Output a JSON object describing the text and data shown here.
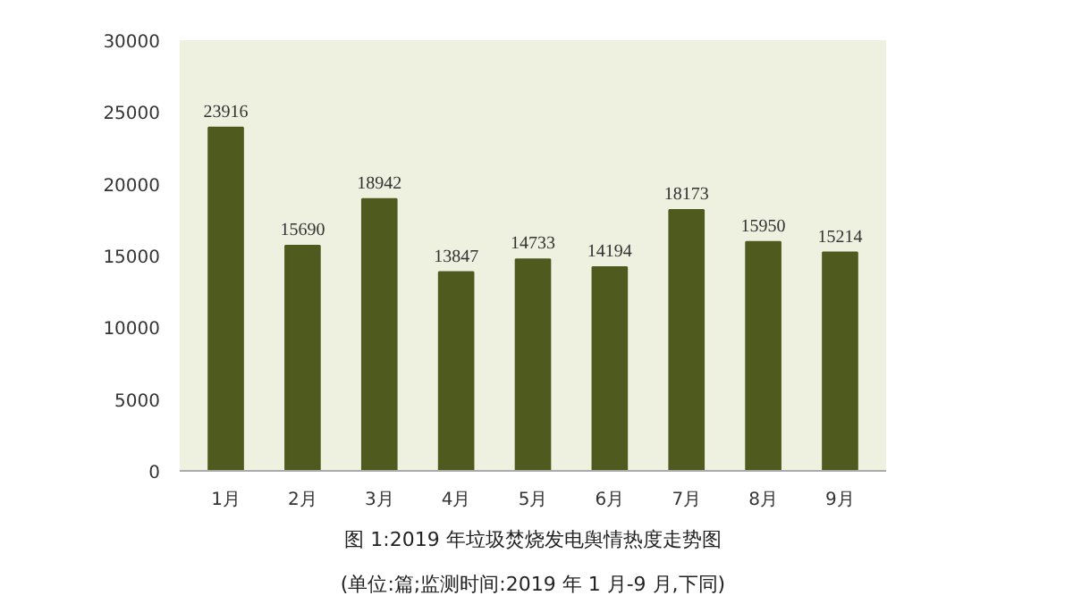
{
  "chart_data": {
    "type": "bar",
    "title": "图 1:2019 年垃圾焚烧发电舆情热度走势图",
    "subtitle": "(单位:篇;监测时间:2019 年 1 月-9 月,下同)",
    "categories": [
      "1月",
      "2月",
      "3月",
      "4月",
      "5月",
      "6月",
      "7月",
      "8月",
      "9月"
    ],
    "values": [
      23916,
      15690,
      18942,
      13847,
      14733,
      14194,
      18173,
      15950,
      15214
    ],
    "color": "#4f5a1f",
    "ylim": [
      0,
      30000
    ],
    "yticks": [
      0,
      5000,
      10000,
      15000,
      20000,
      25000,
      30000
    ],
    "grid": false,
    "data_labels": true
  }
}
